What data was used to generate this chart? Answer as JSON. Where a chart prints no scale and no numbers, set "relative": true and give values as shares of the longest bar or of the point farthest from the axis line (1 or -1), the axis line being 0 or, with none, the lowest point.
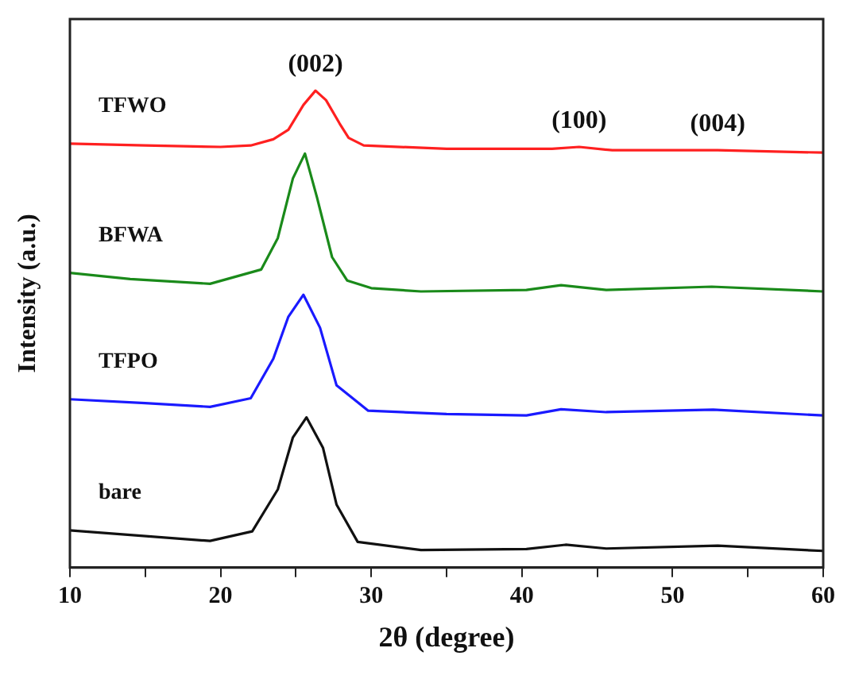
{
  "chart_data": {
    "type": "line",
    "relative": true,
    "xlabel": "2θ (degree)",
    "ylabel": "Intensity (a.u.)",
    "xlim": [
      10,
      60
    ],
    "xticks": [
      10,
      {
        "value": 15,
        "label": null
      },
      20,
      {
        "value": 25,
        "label": null
      },
      30,
      {
        "value": 35,
        "label": null
      },
      40,
      {
        "value": 45,
        "label": null
      },
      50,
      {
        "value": 55,
        "label": null
      },
      60
    ],
    "grid": false,
    "legend": false,
    "marker": "none",
    "line_style": "solid",
    "annotations": [
      {
        "text": "(002)",
        "x": 26.3,
        "y": 1.0
      },
      {
        "text": "(100)",
        "x": 43.8,
        "y": 0.882
      },
      {
        "text": "(004)",
        "x": 53,
        "y": 0.875
      }
    ],
    "series": [
      {
        "name": "TFWO",
        "color": "#ff2020",
        "x": [
          10,
          15,
          20,
          22,
          23.5,
          24.5,
          25.5,
          26.3,
          27,
          27.9,
          28.5,
          29.5,
          35,
          42,
          43.8,
          46,
          53,
          60
        ],
        "values": [
          0.889,
          0.885,
          0.882,
          0.885,
          0.898,
          0.918,
          0.97,
          1.0,
          0.98,
          0.931,
          0.901,
          0.885,
          0.878,
          0.878,
          0.882,
          0.875,
          0.875,
          0.87
        ]
      },
      {
        "name": "BFWA",
        "color": "#1a8a1a",
        "x": [
          10,
          14,
          19.3,
          22.7,
          23.8,
          24.8,
          25.6,
          26.4,
          27.4,
          28.4,
          30,
          33.3,
          40.3,
          42.6,
          45.6,
          52.6,
          60
        ],
        "values": [
          0.618,
          0.605,
          0.595,
          0.625,
          0.691,
          0.816,
          0.868,
          0.776,
          0.651,
          0.602,
          0.586,
          0.579,
          0.582,
          0.592,
          0.582,
          0.589,
          0.579
        ]
      },
      {
        "name": "TFPO",
        "color": "#1a1aff",
        "x": [
          10,
          15,
          19.3,
          22,
          23.5,
          24.5,
          25.5,
          26.6,
          27.7,
          29.8,
          35,
          40.3,
          42.6,
          45.6,
          52.7,
          60
        ],
        "values": [
          0.353,
          0.345,
          0.337,
          0.355,
          0.438,
          0.526,
          0.572,
          0.503,
          0.382,
          0.329,
          0.322,
          0.319,
          0.332,
          0.326,
          0.331,
          0.319
        ]
      },
      {
        "name": "bare",
        "color": "#111111",
        "x": [
          10,
          19.3,
          22.1,
          23.8,
          24.8,
          25.7,
          26.8,
          27.7,
          29.1,
          33.3,
          40.3,
          42.9,
          45.6,
          53,
          60
        ],
        "values": [
          0.078,
          0.056,
          0.076,
          0.164,
          0.273,
          0.315,
          0.251,
          0.132,
          0.054,
          0.037,
          0.039,
          0.048,
          0.04,
          0.046,
          0.035
        ]
      }
    ]
  }
}
